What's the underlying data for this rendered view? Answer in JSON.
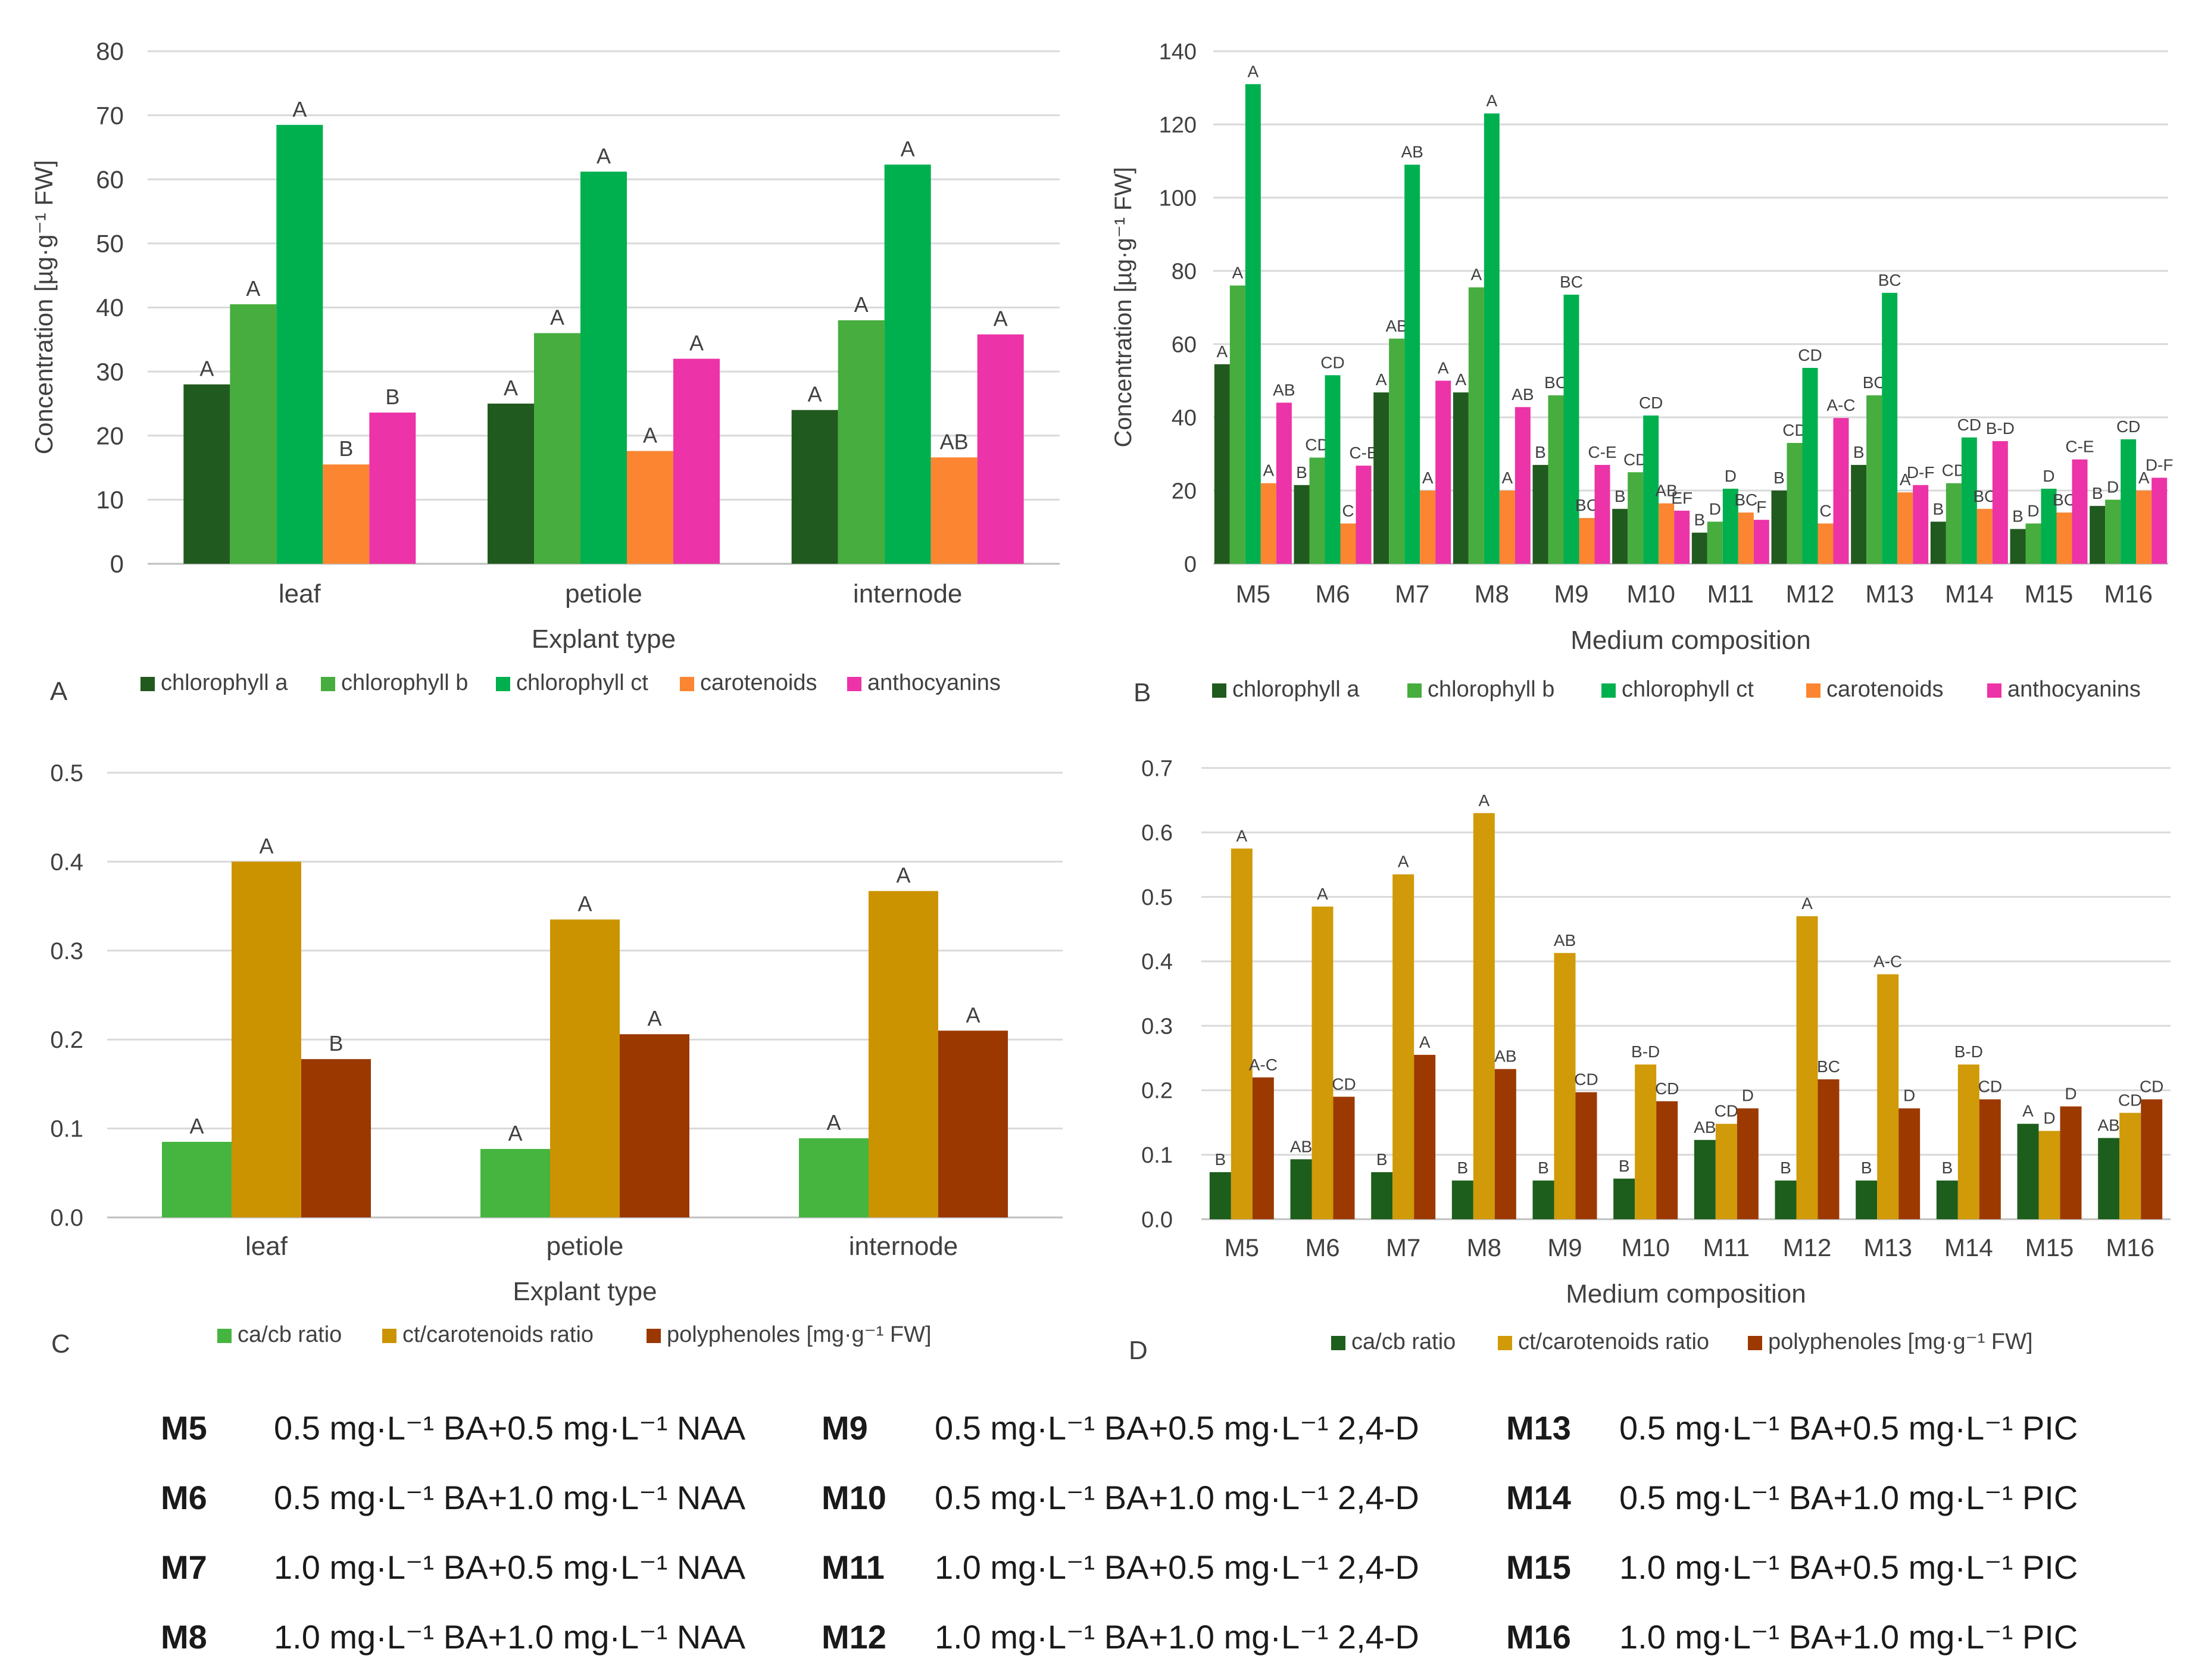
{
  "colors": {
    "chlorophyll_a": "#215A1E",
    "chlorophyll_b": "#46AD3E",
    "chlorophyll_ct": "#00B04F",
    "carotenoids": "#FB8531",
    "anthocyanins": "#EC33A7",
    "cacb_C": "#46B540",
    "ctcar_C": "#CC9300",
    "poly_C": "#9A3800",
    "cacb_D": "#1D5E1C",
    "ctcar_D": "#D09A08",
    "poly_D": "#9C3900"
  },
  "chart_data": [
    {
      "id": "A",
      "panel_letter": "A",
      "type": "bar",
      "title": "",
      "xlabel": "Explant type",
      "ylabel": "Concentration [µg·g⁻¹ FW]",
      "ylim": [
        0,
        80
      ],
      "yticks": [
        "0",
        "10",
        "20",
        "30",
        "40",
        "50",
        "60",
        "70",
        "80"
      ],
      "grid": true,
      "legend_placement": "bottom",
      "categories": [
        "leaf",
        "petiole",
        "internode"
      ],
      "series": [
        {
          "name": "chlorophyll a",
          "color_key": "chlorophyll_a",
          "values": [
            28,
            25,
            24
          ],
          "labels": [
            "A",
            "A",
            "A"
          ]
        },
        {
          "name": "chlorophyll b",
          "color_key": "chlorophyll_b",
          "values": [
            40.5,
            36,
            38
          ],
          "labels": [
            "A",
            "A",
            "A"
          ]
        },
        {
          "name": "chlorophyll ct",
          "color_key": "chlorophyll_ct",
          "values": [
            68.5,
            61.2,
            62.3
          ],
          "labels": [
            "A",
            "A",
            "A"
          ]
        },
        {
          "name": "carotenoids",
          "color_key": "carotenoids",
          "values": [
            15.5,
            17.6,
            16.6
          ],
          "labels": [
            "B",
            "A",
            "AB"
          ]
        },
        {
          "name": "anthocyanins",
          "color_key": "anthocyanins",
          "values": [
            23.6,
            32,
            35.8
          ],
          "labels": [
            "B",
            "A",
            "A"
          ]
        }
      ]
    },
    {
      "id": "B",
      "panel_letter": "B",
      "type": "bar",
      "title": "",
      "xlabel": "Medium composition",
      "ylabel": "Concentration [µg·g⁻¹ FW]",
      "ylim": [
        0,
        140
      ],
      "yticks": [
        "0",
        "20",
        "40",
        "60",
        "80",
        "100",
        "120",
        "140"
      ],
      "grid": true,
      "legend_placement": "bottom",
      "categories": [
        "M5",
        "M6",
        "M7",
        "M8",
        "M9",
        "M10",
        "M11",
        "M12",
        "M13",
        "M14",
        "M15",
        "M16"
      ],
      "series": [
        {
          "name": "chlorophyll a",
          "color_key": "chlorophyll_a",
          "values": [
            54.5,
            21.5,
            46.8,
            46.8,
            27,
            15,
            8.5,
            20,
            27,
            11.5,
            9.5,
            15.8
          ],
          "labels": [
            "A",
            "B",
            "A",
            "A",
            "B",
            "B",
            "B",
            "B",
            "B",
            "B",
            "B",
            "B"
          ]
        },
        {
          "name": "chlorophyll b",
          "color_key": "chlorophyll_b",
          "values": [
            76,
            29,
            61.5,
            75.5,
            46,
            25,
            11.5,
            33,
            46,
            22,
            11,
            17.5
          ],
          "labels": [
            "A",
            "CD",
            "AB",
            "A",
            "BC",
            "CD",
            "D",
            "CD",
            "BC",
            "CD",
            "D",
            "D"
          ]
        },
        {
          "name": "chlorophyll ct",
          "color_key": "chlorophyll_ct",
          "values": [
            131,
            51.5,
            109,
            123,
            73.5,
            40.5,
            20.5,
            53.5,
            74,
            34.5,
            20.5,
            34
          ],
          "labels": [
            "A",
            "CD",
            "AB",
            "A",
            "BC",
            "CD",
            "D",
            "CD",
            "BC",
            "CD",
            "D",
            "CD"
          ]
        },
        {
          "name": "carotenoids",
          "color_key": "carotenoids",
          "values": [
            22,
            11,
            20,
            20,
            12.5,
            16.5,
            14,
            11,
            19.5,
            15,
            14,
            20
          ],
          "labels": [
            "A",
            "C",
            "A",
            "A",
            "BC",
            "AB",
            "BC",
            "C",
            "A",
            "BC",
            "BC",
            "A"
          ]
        },
        {
          "name": "anthocyanins",
          "color_key": "anthocyanins",
          "values": [
            44,
            26.8,
            50,
            42.8,
            27,
            14.5,
            12,
            39.8,
            21.5,
            33.5,
            28.5,
            23.5
          ],
          "labels": [
            "AB",
            "C-E",
            "A",
            "AB",
            "C-E",
            "EF",
            "F",
            "A-C",
            "D-F",
            "B-D",
            "C-E",
            "D-F"
          ]
        }
      ]
    },
    {
      "id": "C",
      "panel_letter": "C",
      "type": "bar",
      "title": "",
      "xlabel": "Explant type",
      "ylabel": "",
      "ylim": [
        0,
        0.5
      ],
      "yticks": [
        "0.0",
        "0.1",
        "0.2",
        "0.3",
        "0.4",
        "0.5"
      ],
      "grid": true,
      "legend_placement": "bottom",
      "categories": [
        "leaf",
        "petiole",
        "internode"
      ],
      "series": [
        {
          "name": "ca/cb ratio",
          "color_key": "cacb_C",
          "values": [
            0.085,
            0.077,
            0.089
          ],
          "labels": [
            "A",
            "A",
            "A"
          ]
        },
        {
          "name": "ct/carotenoids ratio",
          "color_key": "ctcar_C",
          "values": [
            0.4,
            0.335,
            0.367
          ],
          "labels": [
            "A",
            "A",
            "A"
          ]
        },
        {
          "name": "polyphenoles [mg·g⁻¹ FW]",
          "color_key": "poly_C",
          "values": [
            0.178,
            0.206,
            0.21
          ],
          "labels": [
            "B",
            "A",
            "A"
          ]
        }
      ]
    },
    {
      "id": "D",
      "panel_letter": "D",
      "type": "bar",
      "title": "",
      "xlabel": "Medium composition",
      "ylabel": "",
      "ylim": [
        0,
        0.7
      ],
      "yticks": [
        "0.0",
        "0.1",
        "0.2",
        "0.3",
        "0.4",
        "0.5",
        "0.6",
        "0.7"
      ],
      "grid": true,
      "legend_placement": "bottom",
      "categories": [
        "M5",
        "M6",
        "M7",
        "M8",
        "M9",
        "M10",
        "M11",
        "M12",
        "M13",
        "M14",
        "M15",
        "M16"
      ],
      "series": [
        {
          "name": "ca/cb ratio",
          "color_key": "cacb_D",
          "values": [
            0.073,
            0.093,
            0.073,
            0.06,
            0.06,
            0.063,
            0.123,
            0.06,
            0.06,
            0.06,
            0.148,
            0.126
          ],
          "labels": [
            "B",
            "AB",
            "B",
            "B",
            "B",
            "B",
            "AB",
            "B",
            "B",
            "B",
            "A",
            "AB"
          ]
        },
        {
          "name": "ct/carotenoids ratio",
          "color_key": "ctcar_D",
          "values": [
            0.575,
            0.485,
            0.535,
            0.63,
            0.413,
            0.24,
            0.148,
            0.47,
            0.38,
            0.24,
            0.137,
            0.165
          ],
          "labels": [
            "A",
            "A",
            "A",
            "A",
            "AB",
            "B-D",
            "CD",
            "A",
            "A-C",
            "B-D",
            "D",
            "CD"
          ]
        },
        {
          "name": "polyphenoles [mg·g⁻¹ FW]",
          "color_key": "poly_D",
          "values": [
            0.22,
            0.19,
            0.255,
            0.233,
            0.197,
            0.183,
            0.172,
            0.217,
            0.172,
            0.186,
            0.175,
            0.186
          ],
          "labels": [
            "A-C",
            "CD",
            "A",
            "AB",
            "CD",
            "CD",
            "D",
            "BC",
            "D",
            "CD",
            "D",
            "CD"
          ]
        }
      ]
    }
  ],
  "media_legend": [
    [
      {
        "code": "M5",
        "desc": "0.5 mg·L⁻¹ BA+0.5 mg·L⁻¹ NAA"
      },
      {
        "code": "M9",
        "desc": "0.5 mg·L⁻¹ BA+0.5 mg·L⁻¹ 2,4-D"
      },
      {
        "code": "M13",
        "desc": "0.5 mg·L⁻¹ BA+0.5 mg·L⁻¹ PIC"
      }
    ],
    [
      {
        "code": "M6",
        "desc": "0.5 mg·L⁻¹ BA+1.0 mg·L⁻¹ NAA"
      },
      {
        "code": "M10",
        "desc": "0.5 mg·L⁻¹ BA+1.0 mg·L⁻¹ 2,4-D"
      },
      {
        "code": "M14",
        "desc": "0.5 mg·L⁻¹ BA+1.0 mg·L⁻¹ PIC"
      }
    ],
    [
      {
        "code": "M7",
        "desc": "1.0 mg·L⁻¹ BA+0.5 mg·L⁻¹ NAA"
      },
      {
        "code": "M11",
        "desc": "1.0 mg·L⁻¹ BA+0.5 mg·L⁻¹ 2,4-D"
      },
      {
        "code": "M15",
        "desc": "1.0 mg·L⁻¹ BA+0.5 mg·L⁻¹ PIC"
      }
    ],
    [
      {
        "code": "M8",
        "desc": "1.0 mg·L⁻¹ BA+1.0 mg·L⁻¹ NAA"
      },
      {
        "code": "M12",
        "desc": "1.0 mg·L⁻¹ BA+1.0 mg·L⁻¹ 2,4-D"
      },
      {
        "code": "M16",
        "desc": "1.0 mg·L⁻¹ BA+1.0 mg·L⁻¹ PIC"
      }
    ]
  ]
}
